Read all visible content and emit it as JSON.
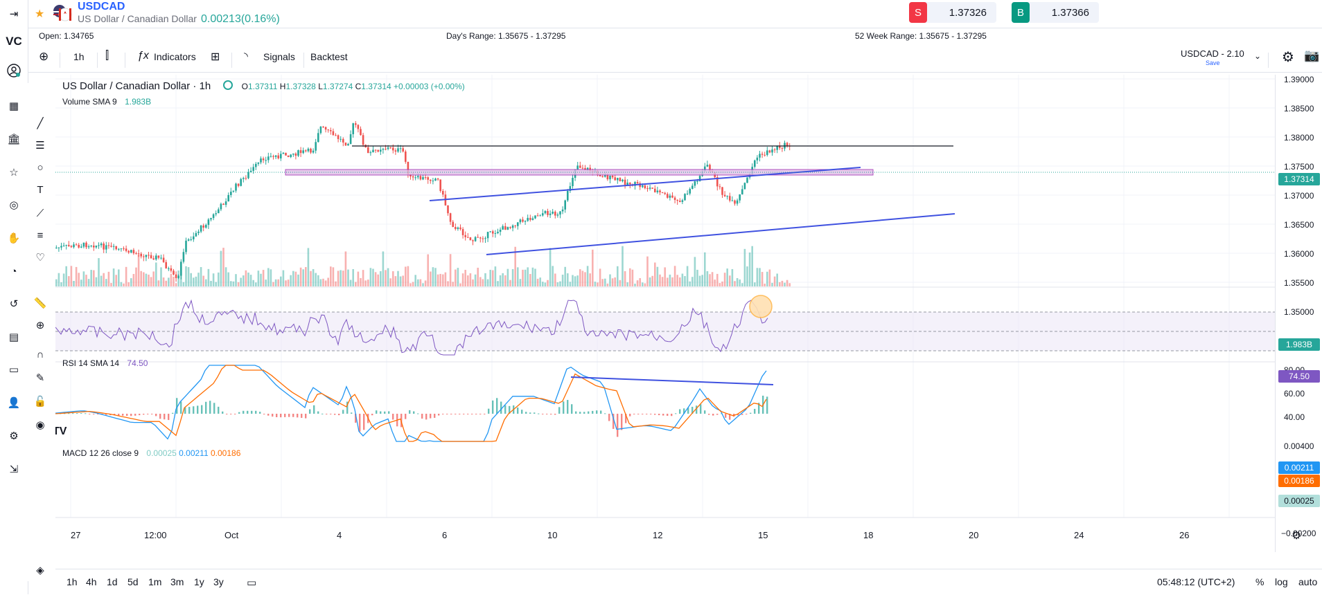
{
  "symbol": {
    "ticker": "USDCAD",
    "description": "US Dollar / Canadian Dollar",
    "change": "0.00213(0.16%)"
  },
  "trade": {
    "sell_letter": "S",
    "sell_price": "1.37326",
    "buy_letter": "B",
    "buy_price": "1.37366",
    "sell_color": "#f23645",
    "buy_color": "#089981"
  },
  "info_bar": {
    "open": "Open: 1.34765",
    "days_range": "Day's Range: 1.35675 - 1.37295",
    "week52_range": "52 Week Range: 1.35675 - 1.37295"
  },
  "toolbar": {
    "interval": "1h",
    "indicators_label": "Indicators",
    "signals_label": "Signals",
    "backtest_label": "Backtest",
    "layout_name": "USDCAD - 2.10",
    "layout_save": "Save"
  },
  "legend": {
    "title": "US Dollar / Canadian Dollar · 1h",
    "o_label": "O",
    "o": "1.37311",
    "h_label": "H",
    "h": "1.37328",
    "l_label": "L",
    "l": "1.37274",
    "c_label": "C",
    "c": "1.37314",
    "chg": "+0.00003 (+0.00%)",
    "volume_label": "Volume",
    "volume_sma": "SMA 9",
    "volume_value": "1.983B",
    "rsi_label": "RSI",
    "rsi_params": "14 SMA 14",
    "rsi_value": "74.50",
    "macd_label": "MACD",
    "macd_params": "12 26 close 9",
    "macd_hist": "0.00025",
    "macd_line": "0.00211",
    "macd_signal": "0.00186"
  },
  "price_axis": {
    "ticks": [
      "1.39000",
      "1.38500",
      "1.38000",
      "1.37500",
      "1.37000",
      "1.36500",
      "1.36000",
      "1.35500",
      "1.35000"
    ],
    "last_price": "1.37314",
    "volume_badge": "1.983B",
    "rsi_ticks": [
      "80.00",
      "60.00",
      "40.00"
    ],
    "rsi_badge": "74.50",
    "macd_ticks": [
      "0.00400",
      "−0.00200"
    ],
    "macd_line_badge": "0.00211",
    "macd_signal_badge": "0.00186",
    "macd_hist_badge": "0.00025"
  },
  "time_axis": [
    "27",
    "12:00",
    "Oct",
    "4",
    "6",
    "10",
    "12",
    "15",
    "18",
    "20",
    "24",
    "26"
  ],
  "bottom": {
    "ranges": [
      "1h",
      "4h",
      "1d",
      "5d",
      "1m",
      "3m",
      "1y",
      "3y"
    ],
    "clock": "05:48:12 (UTC+2)",
    "percent": "%",
    "log": "log",
    "auto": "auto"
  },
  "colors": {
    "up": "#26a69a",
    "down": "#ef5350",
    "trendline": "#3f51e0",
    "rsi": "#7e57c2",
    "macd": "#2196f3",
    "signal": "#ff6d00",
    "accent": "#2962ff"
  }
}
